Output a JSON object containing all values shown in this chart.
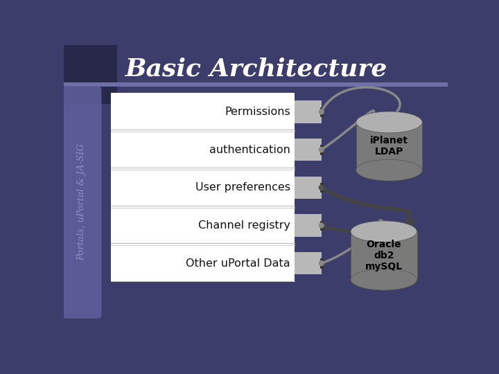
{
  "title": "Basic Architecture",
  "sidebar_text": "Portals, uPortal & JA-SIG",
  "bg_color": "#3d3d6b",
  "sidebar_color": "#6060a0",
  "header_bar_color": "#7070a8",
  "white_box_color": "#ffffff",
  "gray_connector_color": "#b8b8b8",
  "db_body_color": "#888888",
  "db_top_color": "#aaaaaa",
  "rows": [
    "Permissions",
    "authentication",
    "User preferences",
    "Channel registry",
    "Other uPortal Data"
  ],
  "db1_label": "iPlanet\nLDAP",
  "db2_label": "Oracle\ndb2\nmySQL",
  "title_color": "#ffffff",
  "text_color": "#111111",
  "sidebar_text_color": "#9090c0",
  "line_color_gray": "#888888",
  "line_color_black": "#222222",
  "line_color_dark": "#444444"
}
